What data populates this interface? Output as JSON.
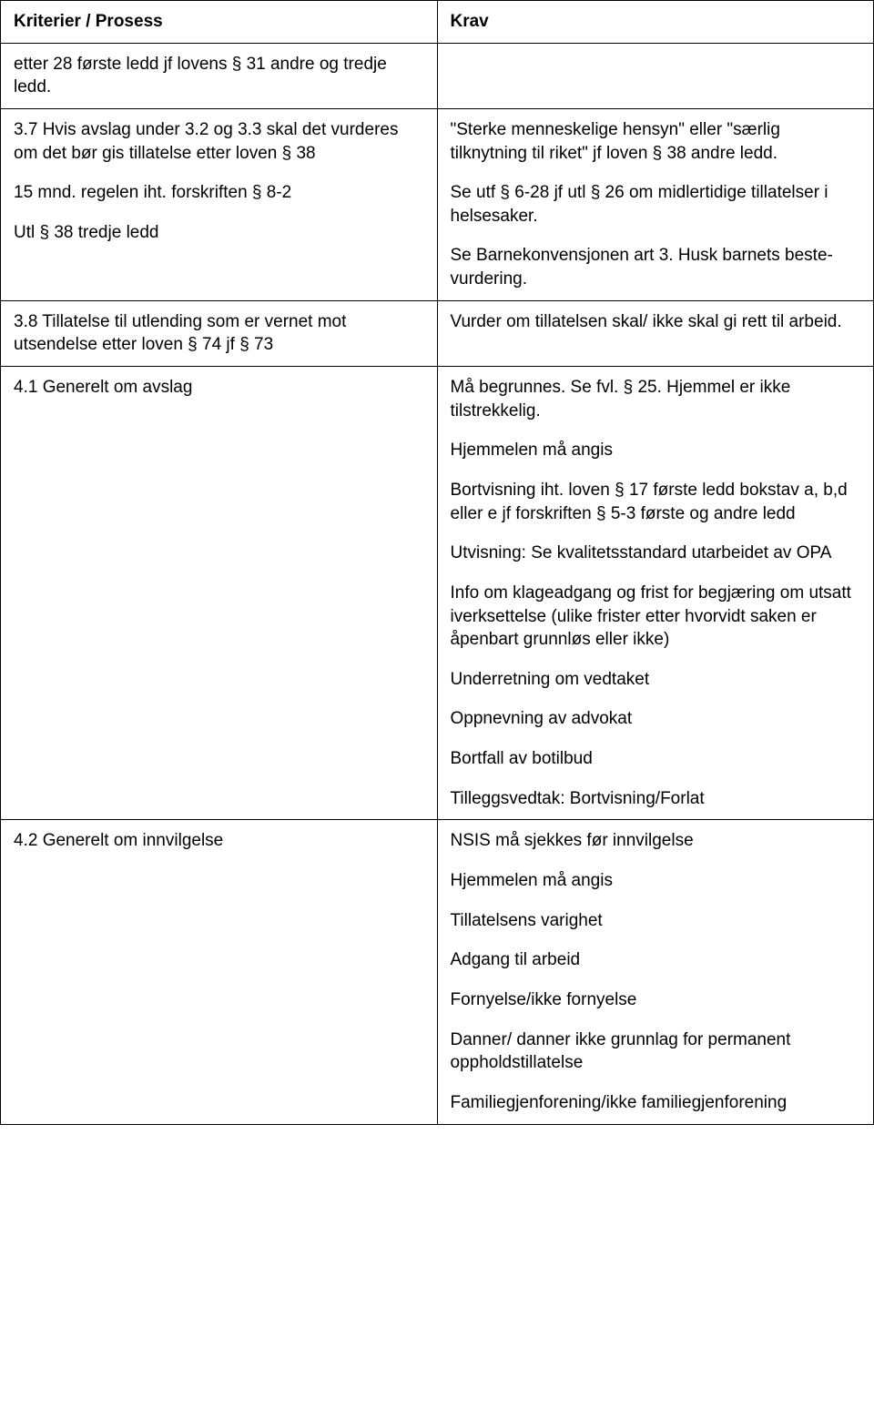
{
  "table": {
    "headers": {
      "left": "Kriterier / Prosess",
      "right": "Krav"
    },
    "rows": [
      {
        "left": [
          "etter 28 første ledd jf lovens § 31 andre og tredje ledd."
        ],
        "right": []
      },
      {
        "left": [
          "3.7 Hvis avslag under 3.2 og 3.3 skal det vurderes om det bør gis tillatelse etter loven § 38",
          "15 mnd. regelen iht. forskriften § 8-2",
          "Utl § 38 tredje ledd"
        ],
        "right": [
          "\"Sterke menneskelige hensyn\" eller \"særlig tilknytning til riket\" jf loven § 38 andre ledd.",
          "Se utf § 6-28 jf utl § 26 om midlertidige tillatelser i helsesaker.",
          "Se Barnekonvensjonen art 3. Husk barnets beste-vurdering."
        ]
      },
      {
        "left": [
          "3.8 Tillatelse til utlending som er vernet mot utsendelse etter loven § 74 jf § 73"
        ],
        "right": [
          "Vurder om tillatelsen skal/ ikke skal gi rett til arbeid."
        ]
      },
      {
        "left": [
          "4.1 Generelt om avslag"
        ],
        "right": [
          "Må begrunnes. Se fvl. § 25. Hjemmel er ikke tilstrekkelig.",
          "Hjemmelen må angis",
          "Bortvisning iht. loven § 17 første ledd bokstav a, b,d eller e jf forskriften § 5-3 første og andre ledd",
          "Utvisning: Se kvalitetsstandard utarbeidet av OPA",
          "Info om klageadgang og frist for begjæring om utsatt iverksettelse (ulike frister etter hvorvidt saken er åpenbart grunnløs eller ikke)",
          "Underretning om vedtaket",
          "Oppnevning av advokat",
          "Bortfall av botilbud",
          "Tilleggsvedtak: Bortvisning/Forlat"
        ]
      },
      {
        "left": [
          "4.2 Generelt om innvilgelse"
        ],
        "right": [
          "NSIS må sjekkes før innvilgelse",
          "Hjemmelen må angis",
          "Tillatelsens varighet",
          "Adgang til arbeid",
          "Fornyelse/ikke fornyelse",
          "Danner/ danner ikke grunnlag for permanent oppholdstillatelse",
          "Familiegjenforening/ikke familiegjenforening"
        ]
      }
    ]
  }
}
